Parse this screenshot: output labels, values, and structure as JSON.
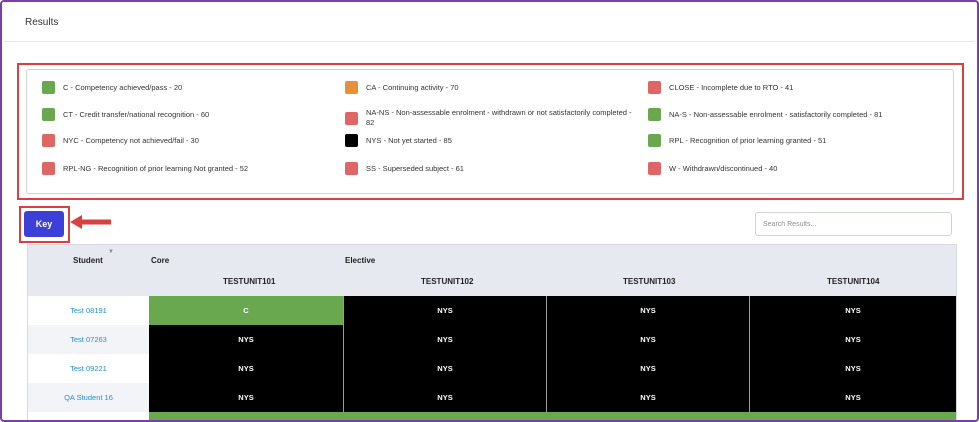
{
  "page_title": "Results",
  "legend": [
    {
      "label": "C - Competency achieved/pass - 20",
      "color": "#6aa84f"
    },
    {
      "label": "CA - Continuing activity - 70",
      "color": "#e69138"
    },
    {
      "label": "CLOSE - Incomplete due to RTO - 41",
      "color": "#e06666"
    },
    {
      "label": "CT - Credit transfer/national recognition - 60",
      "color": "#6aa84f"
    },
    {
      "label": "NA-NS - Non-assessable enrolment - withdrawn or not satisfactorily completed - 82",
      "color": "#e06666"
    },
    {
      "label": "NA-S - Non-assessable enrolment - satisfactorily completed - 81",
      "color": "#6aa84f"
    },
    {
      "label": "NYC - Competency not achieved/fail - 30",
      "color": "#e06666"
    },
    {
      "label": "NYS - Not yet started - 85",
      "color": "#000000"
    },
    {
      "label": "RPL - Recognition of prior learning granted - 51",
      "color": "#6aa84f"
    },
    {
      "label": "RPL-NG - Recognition of prior learning Not granted - 52",
      "color": "#e06666"
    },
    {
      "label": "SS - Superseded subject - 61",
      "color": "#e06666"
    },
    {
      "label": "W - Withdrawn/discontinued - 40",
      "color": "#e06666"
    }
  ],
  "key_button": {
    "label": "Key",
    "color": "#3d3fd9"
  },
  "search": {
    "placeholder": "Search Results..."
  },
  "table": {
    "student_header": "Student",
    "groups": {
      "core": "Core",
      "elective": "Elective"
    },
    "columns": [
      "TESTUNIT101",
      "TESTUNIT102",
      "TESTUNIT103",
      "TESTUNIT104"
    ],
    "rows": [
      {
        "student": "Test 08191",
        "results": [
          "C",
          "NYS",
          "NYS",
          "NYS"
        ]
      },
      {
        "student": "Test 07263",
        "results": [
          "NYS",
          "NYS",
          "NYS",
          "NYS"
        ]
      },
      {
        "student": "Test 09221",
        "results": [
          "NYS",
          "NYS",
          "NYS",
          "NYS"
        ]
      },
      {
        "student": "QA Student 16",
        "results": [
          "NYS",
          "NYS",
          "NYS",
          "NYS"
        ]
      }
    ]
  },
  "icons": {
    "sort": "chevron-down-icon",
    "arrow": "arrow-left-icon"
  },
  "colors": {
    "annotation": "#d9413e",
    "link": "#1e8fd8"
  }
}
